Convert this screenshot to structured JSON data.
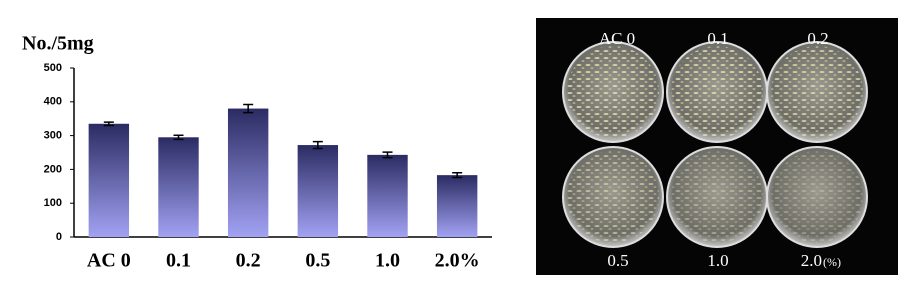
{
  "chart_data": {
    "type": "bar",
    "y_label": "No./5mg",
    "categories": [
      "AC 0",
      "0.1",
      "0.2",
      "0.5",
      "1.0",
      "2.0%"
    ],
    "values": [
      335,
      295,
      380,
      272,
      243,
      183
    ],
    "errors": [
      5,
      6,
      12,
      10,
      8,
      7
    ],
    "gradient": [
      "#2b2b63",
      "#a2a2f4"
    ],
    "ylim": [
      0,
      500
    ],
    "yticks": [
      0,
      100,
      200,
      300,
      400,
      500
    ],
    "grid": false
  },
  "photo": {
    "labels": [
      "AC 0",
      "0.1",
      "0.2",
      "0.5",
      "1.0",
      "2.0"
    ],
    "unit_label": "(%)"
  }
}
